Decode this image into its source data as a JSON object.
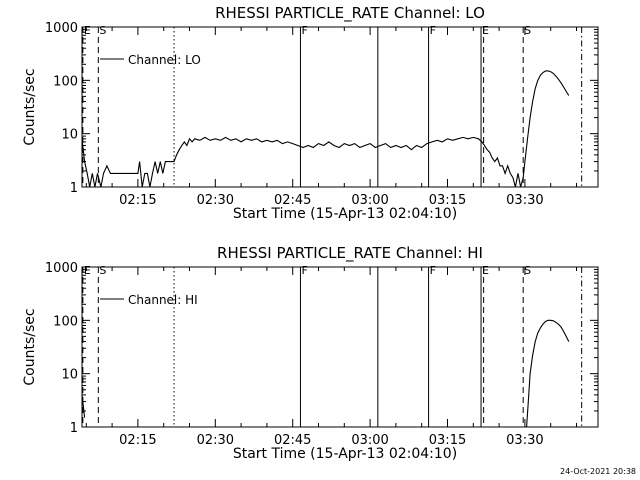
{
  "chart_data": [
    {
      "type": "line",
      "title": "RHESSI PARTICLE_RATE Channel: LO",
      "xlabel": "Start Time (15-Apr-13 02:04:10)",
      "ylabel": "Counts/sec",
      "y_scale": "log",
      "ylim": [
        1,
        1000
      ],
      "xlim": [
        "02:04:10",
        "03:44:10"
      ],
      "x_ticks": [
        "02:15",
        "02:30",
        "02:45",
        "03:00",
        "03:15",
        "03:30"
      ],
      "y_ticks": [
        "1",
        "10",
        "100",
        "1000"
      ],
      "legend": {
        "placement": "top-left",
        "entries": [
          "Channel: LO"
        ]
      },
      "markers": [
        {
          "label": "E",
          "time": "02:04:20",
          "style": "dashed"
        },
        {
          "label": "S",
          "time": "02:07:20",
          "style": "dashed"
        },
        {
          "label": "",
          "time": "02:22:00",
          "style": "dotted"
        },
        {
          "label": "F",
          "time": "02:46:30",
          "style": "solid"
        },
        {
          "label": "",
          "time": "03:01:30",
          "style": "solid"
        },
        {
          "label": "F",
          "time": "03:11:20",
          "style": "solid"
        },
        {
          "label": "E",
          "time": "03:21:30",
          "style": "solid"
        },
        {
          "label": "",
          "time": "03:22:00",
          "style": "dashed"
        },
        {
          "label": "S",
          "time": "03:29:40",
          "style": "dashed"
        },
        {
          "label": "",
          "time": "03:41:00",
          "style": "dash-dot"
        }
      ],
      "series": [
        {
          "name": "Channel: LO",
          "points": [
            [
              "02:04:10",
              8
            ],
            [
              "02:04:40",
              3
            ],
            [
              "02:05:10",
              1.8
            ],
            [
              "02:05:40",
              1
            ],
            [
              "02:06:10",
              1.8
            ],
            [
              "02:06:40",
              1
            ],
            [
              "02:07:10",
              1.8
            ],
            [
              "02:07:50",
              1
            ],
            [
              "02:08:20",
              1.8
            ],
            [
              "02:09:00",
              2.5
            ],
            [
              "02:09:40",
              1.8
            ],
            [
              "02:11:00",
              1.8
            ],
            [
              "02:12:30",
              1.8
            ],
            [
              "02:14:00",
              1.8
            ],
            [
              "02:15:00",
              1.8
            ],
            [
              "02:15:20",
              3
            ],
            [
              "02:15:50",
              1
            ],
            [
              "02:16:20",
              1.8
            ],
            [
              "02:16:50",
              1.8
            ],
            [
              "02:17:20",
              1
            ],
            [
              "02:17:50",
              1.8
            ],
            [
              "02:18:20",
              3
            ],
            [
              "02:18:50",
              1.8
            ],
            [
              "02:19:20",
              3
            ],
            [
              "02:19:50",
              1.8
            ],
            [
              "02:20:20",
              3
            ],
            [
              "02:21:20",
              3
            ],
            [
              "02:22:00",
              3
            ],
            [
              "02:22:30",
              4
            ],
            [
              "02:23:00",
              5
            ],
            [
              "02:23:30",
              6
            ],
            [
              "02:24:00",
              7
            ],
            [
              "02:24:30",
              6
            ],
            [
              "02:25:00",
              8
            ],
            [
              "02:25:30",
              7
            ],
            [
              "02:26:00",
              8
            ],
            [
              "02:27:00",
              7.5
            ],
            [
              "02:28:00",
              8.5
            ],
            [
              "02:29:00",
              7.5
            ],
            [
              "02:30:00",
              8
            ],
            [
              "02:31:00",
              7.5
            ],
            [
              "02:32:00",
              8.5
            ],
            [
              "02:33:00",
              7.5
            ],
            [
              "02:34:00",
              8
            ],
            [
              "02:35:00",
              7
            ],
            [
              "02:36:00",
              8
            ],
            [
              "02:37:00",
              7.5
            ],
            [
              "02:38:00",
              8
            ],
            [
              "02:39:00",
              7
            ],
            [
              "02:40:00",
              7.5
            ],
            [
              "02:41:00",
              7
            ],
            [
              "02:42:00",
              7.5
            ],
            [
              "02:43:00",
              6.5
            ],
            [
              "02:44:00",
              7
            ],
            [
              "02:45:00",
              6.5
            ],
            [
              "02:46:00",
              6
            ],
            [
              "02:47:00",
              5.5
            ],
            [
              "02:48:00",
              6
            ],
            [
              "02:49:00",
              5.5
            ],
            [
              "02:50:00",
              6.5
            ],
            [
              "02:51:00",
              6
            ],
            [
              "02:52:00",
              7
            ],
            [
              "02:53:00",
              6
            ],
            [
              "02:54:00",
              5.5
            ],
            [
              "02:55:00",
              6.5
            ],
            [
              "02:56:00",
              6
            ],
            [
              "02:57:00",
              6.5
            ],
            [
              "02:58:00",
              5.5
            ],
            [
              "02:59:00",
              6
            ],
            [
              "03:00:00",
              6.5
            ],
            [
              "03:01:00",
              5.5
            ],
            [
              "03:02:00",
              6
            ],
            [
              "03:03:00",
              6.5
            ],
            [
              "03:04:00",
              5.5
            ],
            [
              "03:05:00",
              6
            ],
            [
              "03:06:00",
              5.5
            ],
            [
              "03:07:00",
              6
            ],
            [
              "03:08:00",
              5
            ],
            [
              "03:09:00",
              6
            ],
            [
              "03:10:00",
              5.5
            ],
            [
              "03:11:00",
              6.5
            ],
            [
              "03:12:00",
              7
            ],
            [
              "03:13:00",
              7.5
            ],
            [
              "03:14:00",
              7
            ],
            [
              "03:15:00",
              8
            ],
            [
              "03:16:00",
              7.5
            ],
            [
              "03:17:00",
              8
            ],
            [
              "03:18:00",
              8.5
            ],
            [
              "03:19:00",
              8
            ],
            [
              "03:20:00",
              8.5
            ],
            [
              "03:21:00",
              8
            ],
            [
              "03:21:40",
              7
            ],
            [
              "03:22:10",
              6
            ],
            [
              "03:22:40",
              5
            ],
            [
              "03:23:10",
              4.5
            ],
            [
              "03:23:40",
              3.5
            ],
            [
              "03:24:10",
              3
            ],
            [
              "03:24:40",
              3.5
            ],
            [
              "03:25:10",
              2.5
            ],
            [
              "03:25:40",
              2.5
            ],
            [
              "03:26:10",
              1.8
            ],
            [
              "03:26:40",
              2.5
            ],
            [
              "03:27:10",
              1.8
            ],
            [
              "03:27:40",
              1.5
            ],
            [
              "03:28:10",
              1
            ],
            [
              "03:28:40",
              1.8
            ],
            [
              "03:29:10",
              1
            ],
            [
              "03:29:40",
              1.5
            ],
            [
              "03:30:00",
              3
            ],
            [
              "03:30:30",
              8
            ],
            [
              "03:31:00",
              20
            ],
            [
              "03:31:30",
              40
            ],
            [
              "03:32:00",
              70
            ],
            [
              "03:32:30",
              100
            ],
            [
              "03:33:00",
              125
            ],
            [
              "03:33:30",
              140
            ],
            [
              "03:34:00",
              150
            ],
            [
              "03:34:30",
              150
            ],
            [
              "03:35:00",
              145
            ],
            [
              "03:35:30",
              135
            ],
            [
              "03:36:00",
              120
            ],
            [
              "03:36:30",
              105
            ],
            [
              "03:37:00",
              90
            ],
            [
              "03:37:30",
              75
            ],
            [
              "03:38:00",
              62
            ],
            [
              "03:38:30",
              52
            ]
          ]
        }
      ]
    },
    {
      "type": "line",
      "title": "RHESSI PARTICLE_RATE Channel: HI",
      "xlabel": "Start Time (15-Apr-13 02:04:10)",
      "ylabel": "Counts/sec",
      "y_scale": "log",
      "ylim": [
        1,
        1000
      ],
      "xlim": [
        "02:04:10",
        "03:44:10"
      ],
      "x_ticks": [
        "02:15",
        "02:30",
        "02:45",
        "03:00",
        "03:15",
        "03:30"
      ],
      "y_ticks": [
        "1",
        "10",
        "100",
        "1000"
      ],
      "legend": {
        "placement": "top-left",
        "entries": [
          "Channel: HI"
        ]
      },
      "markers": [
        {
          "label": "E",
          "time": "02:04:20",
          "style": "dashed"
        },
        {
          "label": "S",
          "time": "02:07:20",
          "style": "dashed"
        },
        {
          "label": "",
          "time": "02:22:00",
          "style": "dotted"
        },
        {
          "label": "F",
          "time": "02:46:30",
          "style": "solid"
        },
        {
          "label": "",
          "time": "03:01:30",
          "style": "solid"
        },
        {
          "label": "F",
          "time": "03:11:20",
          "style": "solid"
        },
        {
          "label": "E",
          "time": "03:21:30",
          "style": "solid"
        },
        {
          "label": "",
          "time": "03:22:00",
          "style": "dashed"
        },
        {
          "label": "S",
          "time": "03:29:40",
          "style": "dashed"
        },
        {
          "label": "",
          "time": "03:41:00",
          "style": "dash-dot"
        }
      ],
      "series": [
        {
          "name": "Channel: HI",
          "points": [
            [
              "02:04:10",
              4
            ],
            [
              "02:04:25",
              2.5
            ],
            [
              "02:04:40",
              1.5
            ],
            [
              "03:30:20",
              1
            ],
            [
              "03:30:40",
              3
            ],
            [
              "03:31:00",
              10
            ],
            [
              "03:31:30",
              22
            ],
            [
              "03:32:00",
              40
            ],
            [
              "03:32:30",
              58
            ],
            [
              "03:33:00",
              72
            ],
            [
              "03:33:30",
              85
            ],
            [
              "03:34:00",
              95
            ],
            [
              "03:34:30",
              100
            ],
            [
              "03:35:00",
              100
            ],
            [
              "03:35:30",
              98
            ],
            [
              "03:36:00",
              92
            ],
            [
              "03:36:30",
              85
            ],
            [
              "03:37:00",
              75
            ],
            [
              "03:37:30",
              62
            ],
            [
              "03:38:00",
              50
            ],
            [
              "03:38:30",
              40
            ]
          ]
        }
      ]
    }
  ],
  "footer": {
    "date_stamp": "24-Oct-2021 20:38"
  }
}
